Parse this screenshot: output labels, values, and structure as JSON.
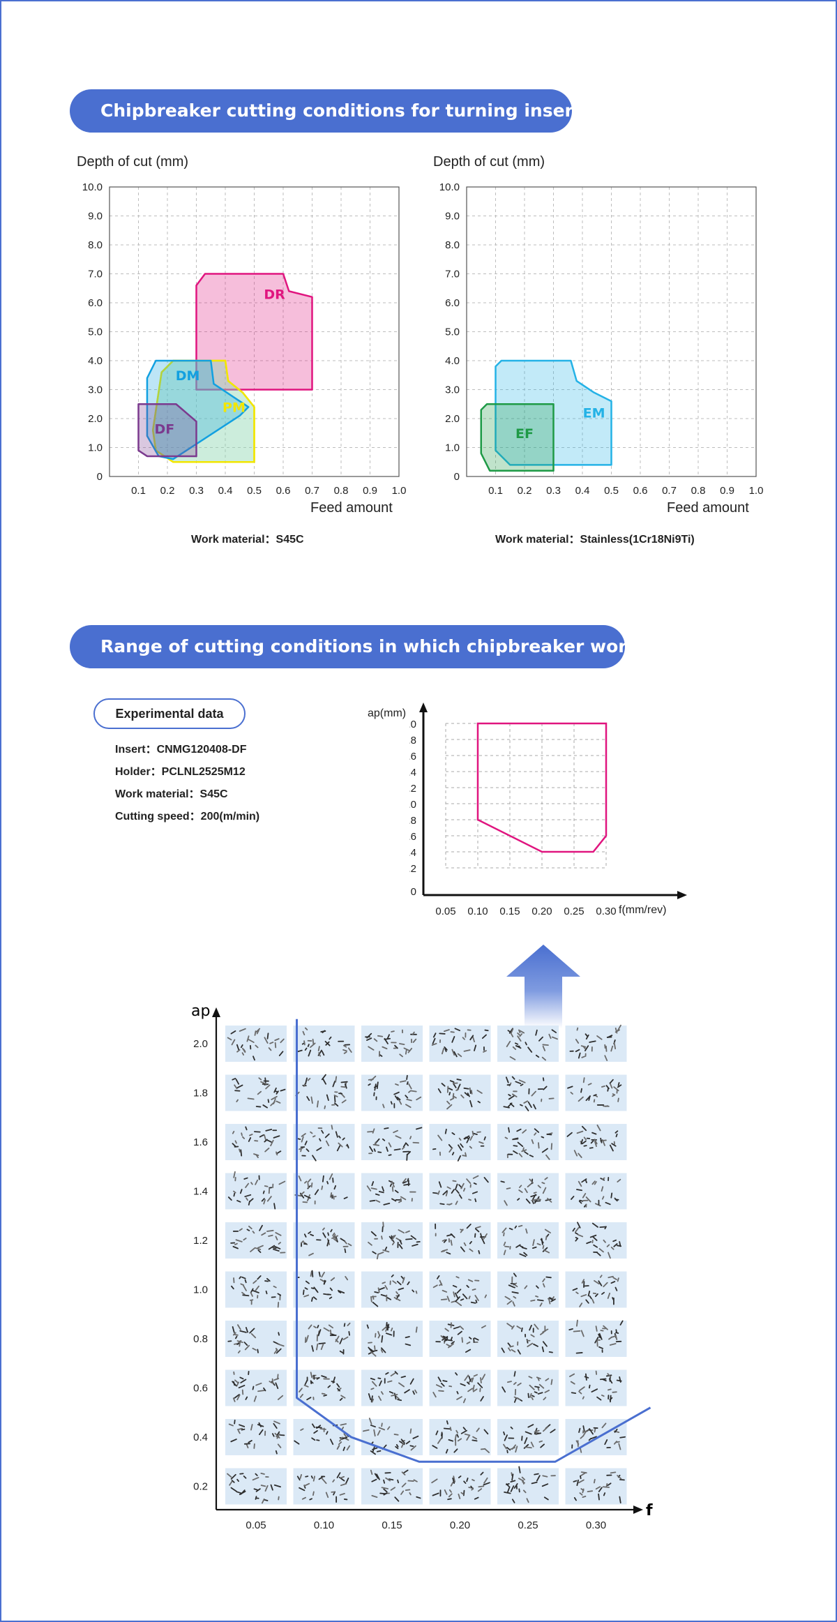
{
  "section1": {
    "title": "Chipbreaker cutting conditions for turning inserts",
    "left_chart": {
      "ylabel": "Depth of cut (mm)",
      "xlabel": "Feed amount",
      "caption": "Work material：S45C"
    },
    "right_chart": {
      "ylabel": "Depth of cut (mm)",
      "xlabel": "Feed amount",
      "caption": "Work material：Stainless(1Cr18Ni9Ti)"
    }
  },
  "section2": {
    "title": "Range of cutting conditions in which chipbreaker works",
    "experimental_label": "Experimental data",
    "conditions": [
      "Insert：CNMG120408-DF",
      "Holder：PCLNL2525M12",
      "Work material：S45C",
      "Cutting speed：200(m/min)"
    ]
  },
  "colors": {
    "accent": "#4a6fd0",
    "DR": "#e0157f",
    "DM": "#12a0e0",
    "PM": "#f2e600",
    "DF": "#7b3a8e",
    "EM": "#24b2e6",
    "EF": "#1e9a46",
    "range": "#e0157f"
  },
  "chart_data": [
    {
      "type": "area",
      "ylabel": "Depth of cut (mm)",
      "xlabel": "Feed amount",
      "xlim": [
        0,
        1.0
      ],
      "ylim": [
        0,
        10.0
      ],
      "x_ticks": [
        "0.1",
        "0.2",
        "0.3",
        "0.4",
        "0.5",
        "0.6",
        "0.7",
        "0.8",
        "0.9",
        "1.0"
      ],
      "y_ticks": [
        "0",
        "1.0",
        "2.0",
        "3.0",
        "4.0",
        "5.0",
        "6.0",
        "7.0",
        "8.0",
        "9.0",
        "10.0"
      ],
      "grid": true,
      "series": [
        {
          "name": "DR",
          "points": [
            [
              0.3,
              3.0
            ],
            [
              0.3,
              6.6
            ],
            [
              0.33,
              7.0
            ],
            [
              0.6,
              7.0
            ],
            [
              0.62,
              6.4
            ],
            [
              0.7,
              6.2
            ],
            [
              0.7,
              3.0
            ]
          ]
        },
        {
          "name": "PM",
          "points": [
            [
              0.15,
              1.6
            ],
            [
              0.18,
              3.6
            ],
            [
              0.22,
              4.0
            ],
            [
              0.4,
              4.0
            ],
            [
              0.41,
              3.3
            ],
            [
              0.46,
              2.9
            ],
            [
              0.5,
              2.4
            ],
            [
              0.5,
              0.5
            ],
            [
              0.22,
              0.5
            ],
            [
              0.16,
              0.9
            ]
          ]
        },
        {
          "name": "DM",
          "points": [
            [
              0.13,
              1.4
            ],
            [
              0.13,
              3.4
            ],
            [
              0.16,
              4.0
            ],
            [
              0.35,
              4.0
            ],
            [
              0.36,
              3.2
            ],
            [
              0.42,
              2.8
            ],
            [
              0.48,
              2.4
            ],
            [
              0.45,
              2.1
            ],
            [
              0.22,
              0.6
            ],
            [
              0.17,
              0.7
            ]
          ]
        },
        {
          "name": "DF",
          "points": [
            [
              0.1,
              0.9
            ],
            [
              0.1,
              2.5
            ],
            [
              0.23,
              2.5
            ],
            [
              0.3,
              1.9
            ],
            [
              0.3,
              0.7
            ],
            [
              0.13,
              0.7
            ]
          ]
        }
      ]
    },
    {
      "type": "area",
      "ylabel": "Depth of cut (mm)",
      "xlabel": "Feed amount",
      "xlim": [
        0,
        1.0
      ],
      "ylim": [
        0,
        10.0
      ],
      "x_ticks": [
        "0.1",
        "0.2",
        "0.3",
        "0.4",
        "0.5",
        "0.6",
        "0.7",
        "0.8",
        "0.9",
        "1.0"
      ],
      "y_ticks": [
        "0",
        "1.0",
        "2.0",
        "3.0",
        "4.0",
        "5.0",
        "6.0",
        "7.0",
        "8.0",
        "9.0",
        "10.0"
      ],
      "grid": true,
      "series": [
        {
          "name": "EM",
          "points": [
            [
              0.1,
              0.9
            ],
            [
              0.1,
              3.8
            ],
            [
              0.12,
              4.0
            ],
            [
              0.36,
              4.0
            ],
            [
              0.38,
              3.3
            ],
            [
              0.44,
              2.9
            ],
            [
              0.5,
              2.6
            ],
            [
              0.5,
              0.4
            ],
            [
              0.15,
              0.4
            ]
          ]
        },
        {
          "name": "EF",
          "points": [
            [
              0.05,
              0.8
            ],
            [
              0.05,
              2.3
            ],
            [
              0.07,
              2.5
            ],
            [
              0.3,
              2.5
            ],
            [
              0.3,
              0.2
            ],
            [
              0.08,
              0.2
            ]
          ]
        }
      ]
    },
    {
      "type": "area",
      "ylabel": "ap(mm)",
      "xlabel": "f(mm/rev)",
      "x_ticks": [
        "0.05",
        "0.10",
        "0.15",
        "0.20",
        "0.25",
        "0.30"
      ],
      "y_ticks": [
        "0",
        "0.2",
        "0.4",
        "0.6",
        "0.8",
        "1.0",
        "1.2",
        "1.4",
        "1.6",
        "1.8",
        "2.0"
      ],
      "grid": true,
      "series": [
        {
          "name": "",
          "points": [
            [
              0.1,
              2.0
            ],
            [
              0.3,
              2.0
            ],
            [
              0.3,
              0.6
            ],
            [
              0.28,
              0.4
            ],
            [
              0.2,
              0.4
            ],
            [
              0.1,
              0.8
            ]
          ]
        }
      ]
    },
    {
      "type": "table",
      "ylabel": "ap",
      "xlabel": "f",
      "x_ticks": [
        "0.05",
        "0.10",
        "0.15",
        "0.20",
        "0.25",
        "0.30"
      ],
      "y_ticks": [
        "2.0",
        "1.8",
        "1.6",
        "1.4",
        "1.2",
        "1.0",
        "0.8",
        "0.6",
        "0.4",
        "0.2"
      ],
      "boundary": [
        [
          0.08,
          2.1
        ],
        [
          0.08,
          0.56
        ],
        [
          0.12,
          0.4
        ],
        [
          0.17,
          0.3
        ],
        [
          0.27,
          0.3
        ],
        [
          0.34,
          0.52
        ]
      ]
    }
  ]
}
